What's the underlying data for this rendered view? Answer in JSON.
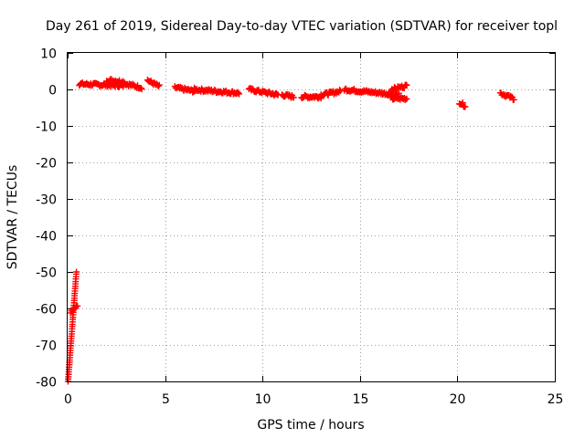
{
  "chart_data": {
    "type": "scatter",
    "title": "Day 261 of 2019, Sidereal Day-to-day VTEC variation (SDTVAR) for receiver topl",
    "xlabel": "GPS time / hours",
    "ylabel": "SDTVAR / TECUs",
    "xlim": [
      0,
      25
    ],
    "ylim": [
      -80,
      10
    ],
    "xticks": [
      0,
      5,
      10,
      15,
      20,
      25
    ],
    "yticks": [
      10,
      0,
      -10,
      -20,
      -30,
      -40,
      -50,
      -60,
      -70,
      -80
    ],
    "grid": true,
    "marker": "+",
    "color": "#ff0000",
    "series": [
      {
        "name": "SDTVAR",
        "segments": [
          {
            "x": [
              0.02,
              0.45
            ],
            "y": [
              -80,
              -50
            ]
          },
          {
            "x": [
              0.15,
              0.5
            ],
            "y": [
              -61,
              -59
            ]
          },
          {
            "x": [
              0.6,
              2.9
            ],
            "y": [
              1.5,
              1.0
            ]
          },
          {
            "x": [
              2.0,
              2.9
            ],
            "y": [
              2.6,
              2.1
            ]
          },
          {
            "x": [
              3.0,
              3.8
            ],
            "y": [
              1.5,
              0.5
            ]
          },
          {
            "x": [
              4.1,
              4.7
            ],
            "y": [
              2.5,
              0.8
            ]
          },
          {
            "x": [
              5.5,
              6.5
            ],
            "y": [
              0.5,
              -0.5
            ]
          },
          {
            "x": [
              6.5,
              8.8
            ],
            "y": [
              0.0,
              -1.0
            ]
          },
          {
            "x": [
              9.3,
              10.8
            ],
            "y": [
              0.0,
              -1.5
            ]
          },
          {
            "x": [
              11.0,
              11.6
            ],
            "y": [
              -1.5,
              -2.0
            ]
          },
          {
            "x": [
              12.0,
              13.0
            ],
            "y": [
              -2.0,
              -2.0
            ]
          },
          {
            "x": [
              13.0,
              14.0
            ],
            "y": [
              -1.5,
              -0.5
            ]
          },
          {
            "x": [
              14.2,
              17.0
            ],
            "y": [
              0.0,
              -1.5
            ]
          },
          {
            "x": [
              16.6,
              17.4
            ],
            "y": [
              -2.5,
              -2.5
            ]
          },
          {
            "x": [
              16.6,
              17.4
            ],
            "y": [
              0.0,
              1.0
            ]
          },
          {
            "x": [
              20.1,
              20.4
            ],
            "y": [
              -3.5,
              -4.5
            ]
          },
          {
            "x": [
              22.2,
              22.9
            ],
            "y": [
              -1.0,
              -2.5
            ]
          }
        ]
      }
    ]
  }
}
